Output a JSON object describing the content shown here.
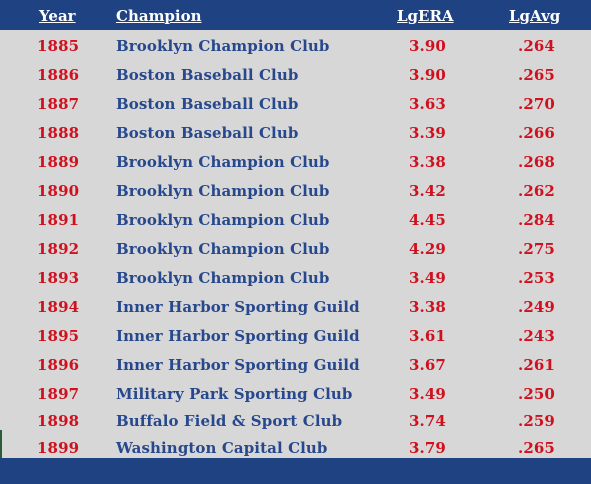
{
  "colors": {
    "header_bg": "#1f4282",
    "row_bg": "#d7d7d7",
    "year_text": "#d0101e",
    "champion_text": "#27488c",
    "stat_text": "#d0101e"
  },
  "table": {
    "headers": {
      "year": "Year",
      "champion": "Champion",
      "lg_era": "LgERA",
      "lg_avg": "LgAvg"
    },
    "rows": [
      {
        "year": "1885",
        "champion": "Brooklyn Champion Club",
        "lg_era": "3.90",
        "lg_avg": ".264"
      },
      {
        "year": "1886",
        "champion": "Boston Baseball Club",
        "lg_era": "3.90",
        "lg_avg": ".265"
      },
      {
        "year": "1887",
        "champion": "Boston Baseball Club",
        "lg_era": "3.63",
        "lg_avg": ".270"
      },
      {
        "year": "1888",
        "champion": "Boston Baseball Club",
        "lg_era": "3.39",
        "lg_avg": ".266"
      },
      {
        "year": "1889",
        "champion": "Brooklyn Champion Club",
        "lg_era": "3.38",
        "lg_avg": ".268"
      },
      {
        "year": "1890",
        "champion": "Brooklyn Champion Club",
        "lg_era": "3.42",
        "lg_avg": ".262"
      },
      {
        "year": "1891",
        "champion": "Brooklyn Champion Club",
        "lg_era": "4.45",
        "lg_avg": ".284"
      },
      {
        "year": "1892",
        "champion": "Brooklyn Champion Club",
        "lg_era": "4.29",
        "lg_avg": ".275"
      },
      {
        "year": "1893",
        "champion": "Brooklyn Champion Club",
        "lg_era": "3.49",
        "lg_avg": ".253"
      },
      {
        "year": "1894",
        "champion": "Inner Harbor Sporting Guild",
        "lg_era": "3.38",
        "lg_avg": ".249"
      },
      {
        "year": "1895",
        "champion": "Inner Harbor Sporting Guild",
        "lg_era": "3.61",
        "lg_avg": ".243"
      },
      {
        "year": "1896",
        "champion": "Inner Harbor Sporting Guild",
        "lg_era": "3.67",
        "lg_avg": ".261"
      },
      {
        "year": "1897",
        "champion": "Military Park Sporting Club",
        "lg_era": "3.49",
        "lg_avg": ".250"
      },
      {
        "year": "1898",
        "champion": "Buffalo Field & Sport Club",
        "lg_era": "3.74",
        "lg_avg": ".259"
      },
      {
        "year": "1899",
        "champion": "Washington Capital Club",
        "lg_era": "3.79",
        "lg_avg": ".265"
      }
    ]
  }
}
